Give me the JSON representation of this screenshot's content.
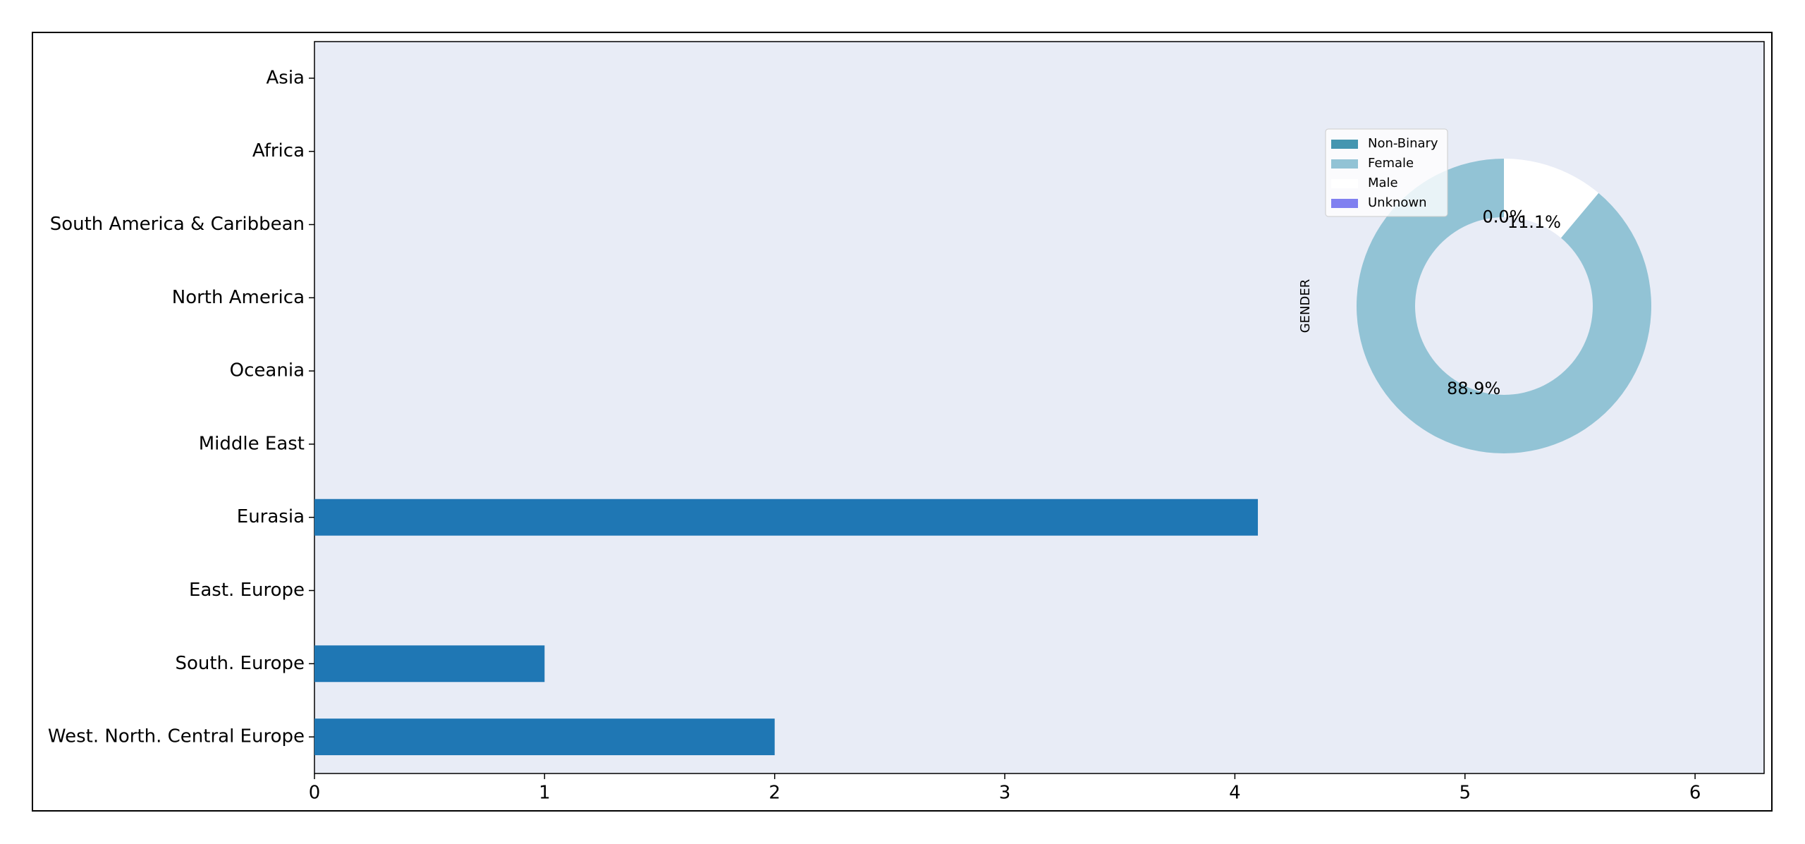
{
  "chart_data": [
    {
      "type": "barh",
      "categories": [
        "Asia",
        "Africa",
        "South America & Caribbean",
        "North America",
        "Oceania",
        "Middle East",
        "Eurasia",
        "East. Europe",
        "South. Europe",
        "West. North. Central Europe"
      ],
      "values": [
        0,
        0,
        0,
        0,
        0,
        0,
        4.1,
        0,
        1,
        2
      ],
      "color": "#1f77b4",
      "xlim": [
        0,
        6.3
      ],
      "xticks": [
        0,
        1,
        2,
        3,
        4,
        5,
        6
      ],
      "background": "#e8ecf6"
    },
    {
      "type": "pie",
      "ylabel": "GENDER",
      "categories": [
        "Non-Binary",
        "Female",
        "Male",
        "Unknown"
      ],
      "values": [
        0.0,
        88.9,
        11.1,
        0.0
      ],
      "value_labels": [
        "0.0%",
        "88.9%",
        "11.1%",
        "0.0%"
      ],
      "colors": [
        "#4496b0",
        "#92c3d5",
        "#ffffff",
        "#8080f0"
      ],
      "legend": "upper left"
    }
  ]
}
